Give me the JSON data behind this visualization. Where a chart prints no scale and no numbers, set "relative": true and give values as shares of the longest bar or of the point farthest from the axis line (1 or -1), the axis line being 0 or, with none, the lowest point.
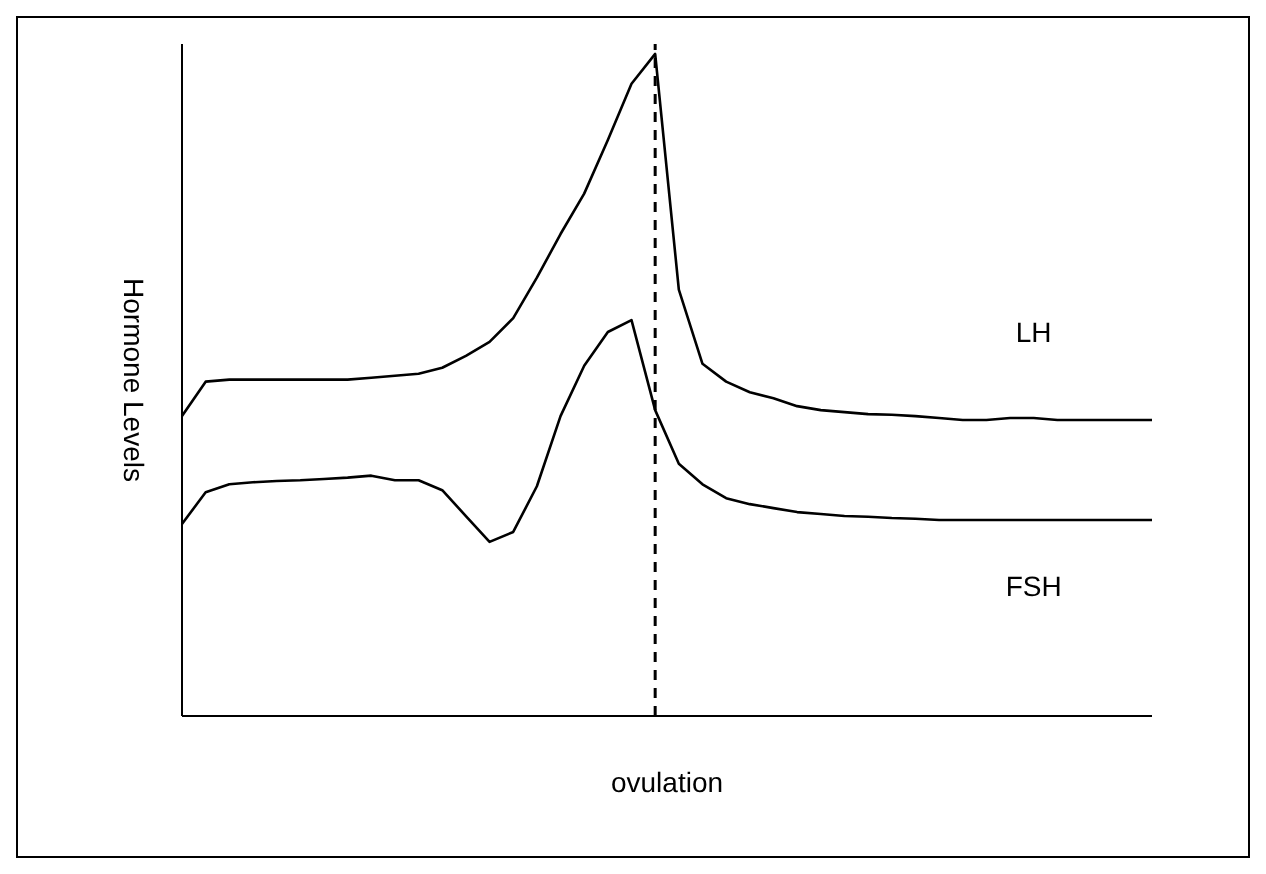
{
  "chart_data": {
    "type": "line",
    "relative": true,
    "ylabel": "Hormone Levels",
    "xlabel": "ovulation",
    "grid": false,
    "legend": false,
    "marker": "none",
    "line_style": "solid",
    "categories": [
      null,
      null,
      null,
      null,
      null,
      null,
      null,
      null,
      null,
      null,
      null,
      null,
      null,
      null,
      null,
      null,
      null,
      null,
      null,
      null,
      null,
      null,
      null,
      null,
      null,
      null,
      null,
      null,
      null,
      null,
      null,
      null,
      null,
      null,
      null,
      null,
      null,
      null,
      null,
      null,
      null,
      null
    ],
    "series": [
      {
        "name": "LH",
        "color": "#000000",
        "values": [
          0.453,
          0.505,
          0.508,
          0.508,
          0.508,
          0.508,
          0.508,
          0.508,
          0.511,
          0.514,
          0.517,
          0.526,
          0.544,
          0.565,
          0.601,
          0.662,
          0.728,
          0.789,
          0.87,
          0.955,
          1,
          0.644,
          0.532,
          0.505,
          0.489,
          0.48,
          0.468,
          0.462,
          0.459,
          0.456,
          0.455,
          0.453,
          0.45,
          0.447,
          0.447,
          0.45,
          0.45,
          0.447,
          0.447,
          0.447,
          0.447,
          0.447
        ]
      },
      {
        "name": "FSH",
        "color": "#000000",
        "values": [
          0.29,
          0.338,
          0.35,
          0.353,
          0.355,
          0.356,
          0.358,
          0.36,
          0.363,
          0.356,
          0.356,
          0.341,
          0.302,
          0.263,
          0.278,
          0.347,
          0.453,
          0.529,
          0.58,
          0.598,
          0.462,
          0.381,
          0.35,
          0.329,
          0.32,
          0.314,
          0.308,
          0.305,
          0.302,
          0.301,
          0.299,
          0.298,
          0.296,
          0.296,
          0.296,
          0.296,
          0.296,
          0.296,
          0.296,
          0.296,
          0.296,
          0.296
        ]
      }
    ]
  }
}
